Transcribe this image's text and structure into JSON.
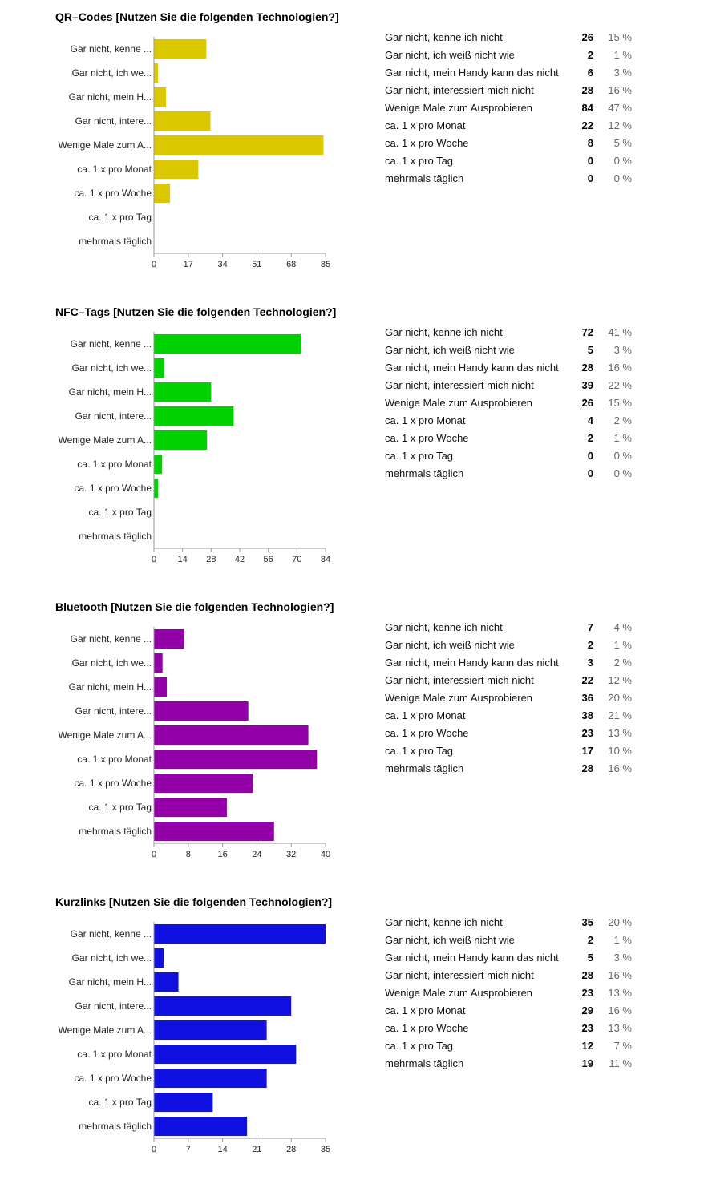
{
  "sections": [
    {
      "title": "QR–Codes [Nutzen Sie die folgenden Technologien?]",
      "rows": [
        {
          "label": "Gar nicht, kenne ich nicht",
          "count": "26",
          "percent": "15 %"
        },
        {
          "label": "Gar nicht, ich weiß nicht wie",
          "count": "2",
          "percent": "1 %"
        },
        {
          "label": "Gar nicht, mein Handy kann das nicht",
          "count": "6",
          "percent": "3 %"
        },
        {
          "label": "Gar nicht, interessiert mich nicht",
          "count": "28",
          "percent": "16 %"
        },
        {
          "label": "Wenige Male zum Ausprobieren",
          "count": "84",
          "percent": "47 %"
        },
        {
          "label": "ca. 1 x pro Monat",
          "count": "22",
          "percent": "12 %"
        },
        {
          "label": "ca. 1 x pro Woche",
          "count": "8",
          "percent": "5 %"
        },
        {
          "label": "ca. 1 x pro Tag",
          "count": "0",
          "percent": "0 %"
        },
        {
          "label": "mehrmals täglich",
          "count": "0",
          "percent": "0 %"
        }
      ]
    },
    {
      "title": "NFC–Tags [Nutzen Sie die folgenden Technologien?]",
      "rows": [
        {
          "label": "Gar nicht, kenne ich nicht",
          "count": "72",
          "percent": "41 %"
        },
        {
          "label": "Gar nicht, ich weiß nicht wie",
          "count": "5",
          "percent": "3 %"
        },
        {
          "label": "Gar nicht, mein Handy kann das nicht",
          "count": "28",
          "percent": "16 %"
        },
        {
          "label": "Gar nicht, interessiert mich nicht",
          "count": "39",
          "percent": "22 %"
        },
        {
          "label": "Wenige Male zum Ausprobieren",
          "count": "26",
          "percent": "15 %"
        },
        {
          "label": "ca. 1 x pro Monat",
          "count": "4",
          "percent": "2 %"
        },
        {
          "label": "ca. 1 x pro Woche",
          "count": "2",
          "percent": "1 %"
        },
        {
          "label": "ca. 1 x pro Tag",
          "count": "0",
          "percent": "0 %"
        },
        {
          "label": "mehrmals täglich",
          "count": "0",
          "percent": "0 %"
        }
      ]
    },
    {
      "title": "Bluetooth [Nutzen Sie die folgenden Technologien?]",
      "rows": [
        {
          "label": "Gar nicht, kenne ich nicht",
          "count": "7",
          "percent": "4 %"
        },
        {
          "label": "Gar nicht, ich weiß nicht wie",
          "count": "2",
          "percent": "1 %"
        },
        {
          "label": "Gar nicht, mein Handy kann das nicht",
          "count": "3",
          "percent": "2 %"
        },
        {
          "label": "Gar nicht, interessiert mich nicht",
          "count": "22",
          "percent": "12 %"
        },
        {
          "label": "Wenige Male zum Ausprobieren",
          "count": "36",
          "percent": "20 %"
        },
        {
          "label": "ca. 1 x pro Monat",
          "count": "38",
          "percent": "21 %"
        },
        {
          "label": "ca. 1 x pro Woche",
          "count": "23",
          "percent": "13 %"
        },
        {
          "label": "ca. 1 x pro Tag",
          "count": "17",
          "percent": "10 %"
        },
        {
          "label": "mehrmals täglich",
          "count": "28",
          "percent": "16 %"
        }
      ]
    },
    {
      "title": "Kurzlinks [Nutzen Sie die folgenden Technologien?]",
      "rows": [
        {
          "label": "Gar nicht, kenne ich nicht",
          "count": "35",
          "percent": "20 %"
        },
        {
          "label": "Gar nicht, ich weiß nicht wie",
          "count": "2",
          "percent": "1 %"
        },
        {
          "label": "Gar nicht, mein Handy kann das nicht",
          "count": "5",
          "percent": "3 %"
        },
        {
          "label": "Gar nicht, interessiert mich nicht",
          "count": "28",
          "percent": "16 %"
        },
        {
          "label": "Wenige Male zum Ausprobieren",
          "count": "23",
          "percent": "13 %"
        },
        {
          "label": "ca. 1 x pro Monat",
          "count": "29",
          "percent": "16 %"
        },
        {
          "label": "ca. 1 x pro Woche",
          "count": "23",
          "percent": "13 %"
        },
        {
          "label": "ca. 1 x pro Tag",
          "count": "12",
          "percent": "7 %"
        },
        {
          "label": "mehrmals täglich",
          "count": "19",
          "percent": "11 %"
        }
      ]
    }
  ],
  "chart_data": [
    {
      "type": "bar",
      "orientation": "horizontal",
      "color": "#dcc800",
      "categories": [
        "Gar nicht, kenne ...",
        "Gar nicht, ich we...",
        "Gar nicht, mein H...",
        "Gar nicht, intere...",
        "Wenige Male zum A...",
        "ca. 1 x pro Monat",
        "ca. 1 x pro Woche",
        "ca. 1 x pro Tag",
        "mehrmals täglich"
      ],
      "values": [
        26,
        2,
        6,
        28,
        84,
        22,
        8,
        0,
        0
      ],
      "xticks": [
        "0",
        "17",
        "34",
        "51",
        "68",
        "85"
      ],
      "xlim": [
        0,
        85
      ],
      "grid": false
    },
    {
      "type": "bar",
      "orientation": "horizontal",
      "color": "#00d200",
      "categories": [
        "Gar nicht, kenne ...",
        "Gar nicht, ich we...",
        "Gar nicht, mein H...",
        "Gar nicht, intere...",
        "Wenige Male zum A...",
        "ca. 1 x pro Monat",
        "ca. 1 x pro Woche",
        "ca. 1 x pro Tag",
        "mehrmals täglich"
      ],
      "values": [
        72,
        5,
        28,
        39,
        26,
        4,
        2,
        0,
        0
      ],
      "xticks": [
        "0",
        "14",
        "28",
        "42",
        "56",
        "70",
        "84"
      ],
      "xlim": [
        0,
        84
      ],
      "grid": false
    },
    {
      "type": "bar",
      "orientation": "horizontal",
      "color": "#9400a8",
      "categories": [
        "Gar nicht, kenne ...",
        "Gar nicht, ich we...",
        "Gar nicht, mein H...",
        "Gar nicht, intere...",
        "Wenige Male zum A...",
        "ca. 1 x pro Monat",
        "ca. 1 x pro Woche",
        "ca. 1 x pro Tag",
        "mehrmals täglich"
      ],
      "values": [
        7,
        2,
        3,
        22,
        36,
        38,
        23,
        17,
        28
      ],
      "xticks": [
        "0",
        "8",
        "16",
        "24",
        "32",
        "40"
      ],
      "xlim": [
        0,
        40
      ],
      "grid": false
    },
    {
      "type": "bar",
      "orientation": "horizontal",
      "color": "#1010e0",
      "categories": [
        "Gar nicht, kenne ...",
        "Gar nicht, ich we...",
        "Gar nicht, mein H...",
        "Gar nicht, intere...",
        "Wenige Male zum A...",
        "ca. 1 x pro Monat",
        "ca. 1 x pro Woche",
        "ca. 1 x pro Tag",
        "mehrmals täglich"
      ],
      "values": [
        35,
        2,
        5,
        28,
        23,
        29,
        23,
        12,
        19
      ],
      "xticks": [
        "0",
        "7",
        "14",
        "21",
        "28",
        "35"
      ],
      "xlim": [
        0,
        35
      ],
      "grid": false
    }
  ]
}
